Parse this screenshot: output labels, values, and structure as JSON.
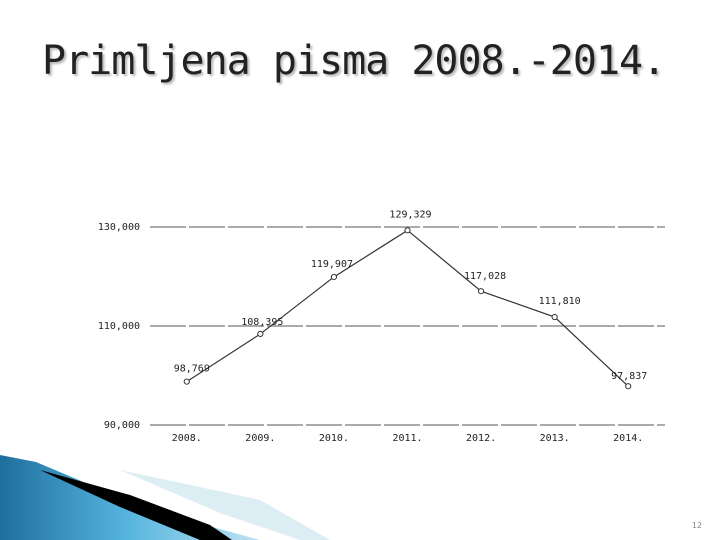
{
  "slide": {
    "title": "Primljena pisma 2008.-2014.",
    "page_number": "12"
  },
  "colors": {
    "grid": "#777777",
    "line": "#333333",
    "accent_blue": "#3a93c2",
    "accent_dark": "#000000"
  },
  "chart_data": {
    "type": "line",
    "title": "",
    "xlabel": "",
    "ylabel": "",
    "categories": [
      "2008.",
      "2009.",
      "2010.",
      "2011.",
      "2012.",
      "2013.",
      "2014."
    ],
    "series": [
      {
        "values": [
          98769,
          108395,
          119907,
          129329,
          117028,
          111810,
          97837
        ],
        "labels": [
          "98,769",
          "108,395",
          "119,907",
          "129,329",
          "117,028",
          "111,810",
          "97,837"
        ]
      }
    ],
    "yticks": [
      90000,
      110000,
      130000
    ],
    "ytick_labels": [
      "90,000",
      "110,000",
      "130,000"
    ],
    "ylim": [
      90000,
      130000
    ],
    "grid": true,
    "legend": false
  }
}
